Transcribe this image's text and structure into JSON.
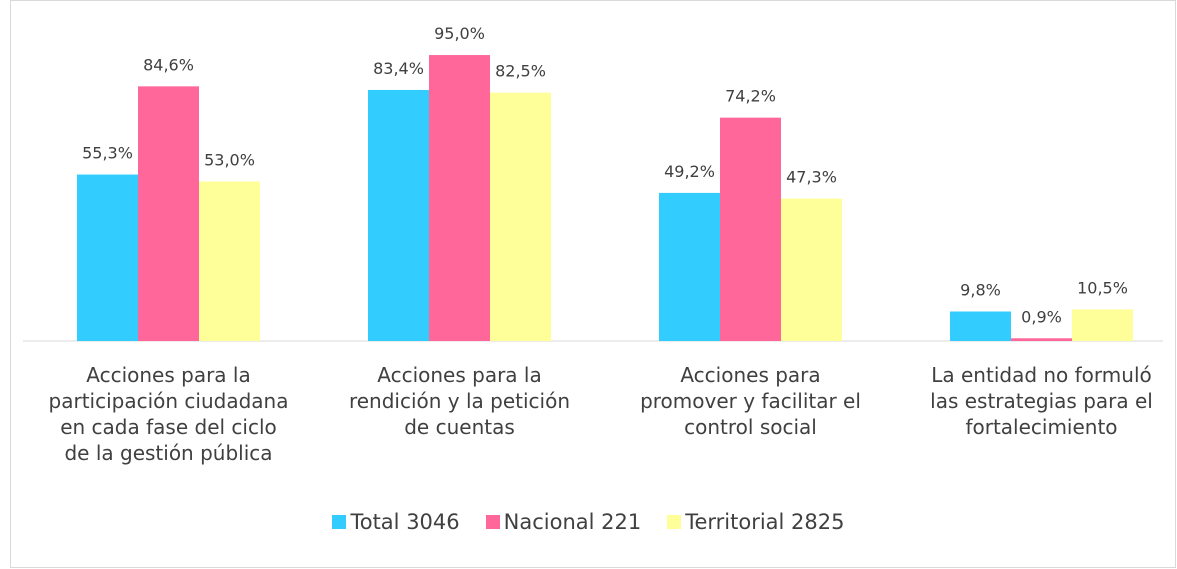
{
  "chart_data": {
    "type": "bar",
    "categories": [
      "Acciones para la participación ciudadana en cada fase del ciclo de la gestión pública",
      "Acciones para la rendición y la petición de cuentas",
      "Acciones para promover y facilitar el control social",
      "La entidad no formuló las estrategias para el fortalecimiento"
    ],
    "series": [
      {
        "name": "Total 3046",
        "color": "#33ccff",
        "values": [
          55.3,
          83.4,
          49.2,
          9.8
        ],
        "value_labels": [
          "55,3%",
          "83,4%",
          "49,2%",
          "9,8%"
        ]
      },
      {
        "name": "Nacional 221",
        "color": "#ff6699",
        "values": [
          84.6,
          95.0,
          74.2,
          0.9
        ],
        "value_labels": [
          "84,6%",
          "95,0%",
          "74,2%",
          "0,9%"
        ]
      },
      {
        "name": "Territorial 2825",
        "color": "#ffff99",
        "values": [
          53.0,
          82.5,
          47.3,
          10.5
        ],
        "value_labels": [
          "53,0%",
          "82,5%",
          "47,3%",
          "10,5%"
        ]
      }
    ],
    "legend": "bottom"
  }
}
